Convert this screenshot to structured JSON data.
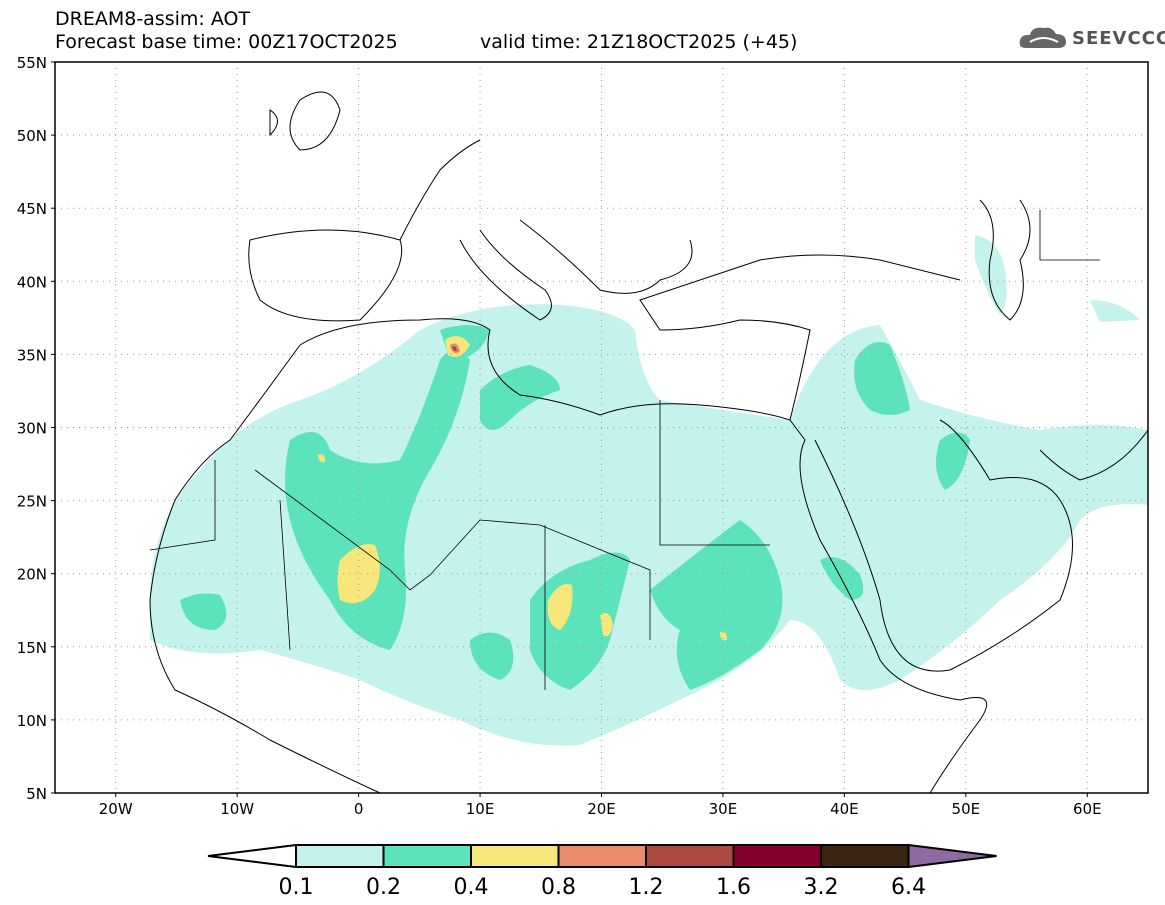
{
  "header": {
    "title": "DREAM8-assim: AOT",
    "base_time": "Forecast base time: 00Z17OCT2025",
    "valid_time": "valid time: 21Z18OCT2025 (+45)"
  },
  "logo": {
    "text": "SEEVCCC"
  },
  "map": {
    "lat_labels": [
      "55N",
      "50N",
      "45N",
      "40N",
      "35N",
      "30N",
      "25N",
      "20N",
      "15N",
      "10N",
      "5N"
    ],
    "lon_labels": [
      "20W",
      "10W",
      "0",
      "10E",
      "20E",
      "30E",
      "40E",
      "50E",
      "60E"
    ]
  },
  "colorbar": {
    "labels": [
      "0.1",
      "0.2",
      "0.4",
      "0.8",
      "1.2",
      "1.6",
      "3.2",
      "6.4"
    ],
    "colors": [
      "#ffffff",
      "#c4f2ec",
      "#5de3bc",
      "#f7e67a",
      "#ea8a6a",
      "#ac4a42",
      "#83002f",
      "#3b2512",
      "#8e6aa0"
    ]
  }
}
